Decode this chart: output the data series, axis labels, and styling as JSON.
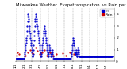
{
  "title": "Milwaukee Weather  Evapotranspiration  vs Rain per Day",
  "legend_et": "ET",
  "legend_rain": "Rain",
  "et_color": "#0000cc",
  "rain_color": "#cc0000",
  "background_color": "#ffffff",
  "grid_color": "#888888",
  "et_data": [
    0.02,
    0.02,
    0.02,
    0.02,
    0.02,
    0.02,
    0.02,
    0.02,
    0.02,
    0.02,
    0.02,
    0.02,
    0.02,
    0.02,
    0.02,
    0.02,
    0.02,
    0.02,
    0.02,
    0.02,
    0.02,
    0.02,
    0.02,
    0.02,
    0.02,
    0.02,
    0.02,
    0.02,
    0.02,
    0.02,
    0.02,
    0.04,
    0.06,
    0.08,
    0.1,
    0.12,
    0.14,
    0.16,
    0.18,
    0.2,
    0.22,
    0.26,
    0.3,
    0.34,
    0.38,
    0.4,
    0.38,
    0.36,
    0.34,
    0.3,
    0.28,
    0.26,
    0.24,
    0.22,
    0.2,
    0.18,
    0.16,
    0.14,
    0.12,
    0.1,
    0.08,
    0.06,
    0.04,
    0.04,
    0.06,
    0.1,
    0.14,
    0.18,
    0.22,
    0.26,
    0.3,
    0.34,
    0.36,
    0.38,
    0.4,
    0.38,
    0.36,
    0.34,
    0.32,
    0.3,
    0.28,
    0.26,
    0.24,
    0.22,
    0.2,
    0.18,
    0.16,
    0.14,
    0.12,
    0.1,
    0.08,
    0.06,
    0.04,
    0.04,
    0.06,
    0.08,
    0.1,
    0.12,
    0.14,
    0.16,
    0.18,
    0.2,
    0.22,
    0.24,
    0.26,
    0.28,
    0.3,
    0.28,
    0.26,
    0.24,
    0.22,
    0.2,
    0.18,
    0.16,
    0.14,
    0.12,
    0.1,
    0.08,
    0.06,
    0.04,
    0.04,
    0.06,
    0.08,
    0.1,
    0.12,
    0.14,
    0.12,
    0.1,
    0.08,
    0.06,
    0.04,
    0.04,
    0.06,
    0.08,
    0.1,
    0.08,
    0.06,
    0.04,
    0.02,
    0.02,
    0.02,
    0.02,
    0.02,
    0.02,
    0.02,
    0.02,
    0.02,
    0.02,
    0.02,
    0.02,
    0.02,
    0.02,
    0.02,
    0.02,
    0.02,
    0.02,
    0.02,
    0.02,
    0.02,
    0.02,
    0.02,
    0.02,
    0.02,
    0.02,
    0.02,
    0.02,
    0.02,
    0.02,
    0.02,
    0.02,
    0.02,
    0.02,
    0.02,
    0.02,
    0.02,
    0.02,
    0.02,
    0.02,
    0.02,
    0.02,
    0.02,
    0.02,
    0.02,
    0.02,
    0.02,
    0.02,
    0.02,
    0.02,
    0.02,
    0.02,
    0.02,
    0.02,
    0.02,
    0.02,
    0.02,
    0.02,
    0.02,
    0.02,
    0.02,
    0.02,
    0.02,
    0.02,
    0.02,
    0.02,
    0.02,
    0.04,
    0.06,
    0.08,
    0.1,
    0.12,
    0.14,
    0.16,
    0.18,
    0.2,
    0.18,
    0.16,
    0.14,
    0.12,
    0.1,
    0.08,
    0.06,
    0.06,
    0.08,
    0.1,
    0.08,
    0.06,
    0.04,
    0.04,
    0.06,
    0.08,
    0.1,
    0.12,
    0.1,
    0.08,
    0.06,
    0.04,
    0.04,
    0.04,
    0.04,
    0.04,
    0.04,
    0.04,
    0.04,
    0.04,
    0.04,
    0.04,
    0.04,
    0.04,
    0.04,
    0.04,
    0.04,
    0.04,
    0.04,
    0.04,
    0.04,
    0.04,
    0.04,
    0.04,
    0.04,
    0.04,
    0.04,
    0.04,
    0.04,
    0.04,
    0.04,
    0.04,
    0.04,
    0.04,
    0.04,
    0.04,
    0.04,
    0.04,
    0.04,
    0.04,
    0.04,
    0.04,
    0.04,
    0.04,
    0.04,
    0.04,
    0.04,
    0.04,
    0.04,
    0.04,
    0.04,
    0.04,
    0.04,
    0.04,
    0.04,
    0.04,
    0.04,
    0.04,
    0.04,
    0.04,
    0.04,
    0.04,
    0.04,
    0.04,
    0.04,
    0.04,
    0.04,
    0.04,
    0.04,
    0.04,
    0.04,
    0.04,
    0.04,
    0.04,
    0.04,
    0.04,
    0.04,
    0.04,
    0.04,
    0.04,
    0.04,
    0.04,
    0.04,
    0.04,
    0.04,
    0.04,
    0.04,
    0.04,
    0.04,
    0.04,
    0.04,
    0.04,
    0.04,
    0.04,
    0.04,
    0.04,
    0.04,
    0.04,
    0.04,
    0.04,
    0.04,
    0.04,
    0.04,
    0.04,
    0.04,
    0.04,
    0.04,
    0.04,
    0.04,
    0.04,
    0.04,
    0.04,
    0.04,
    0.04,
    0.04,
    0.04,
    0.04,
    0.04,
    0.04,
    0.04,
    0.04,
    0.04,
    0.04
  ],
  "rain_data": [
    0.0,
    0.0,
    0.0,
    0.05,
    0.0,
    0.0,
    0.0,
    0.08,
    0.0,
    0.0,
    0.0,
    0.0,
    0.0,
    0.06,
    0.0,
    0.0,
    0.0,
    0.0,
    0.0,
    0.0,
    0.0,
    0.0,
    0.0,
    0.0,
    0.0,
    0.0,
    0.0,
    0.0,
    0.0,
    0.0,
    0.0,
    0.0,
    0.0,
    0.0,
    0.0,
    0.05,
    0.0,
    0.0,
    0.0,
    0.0,
    0.0,
    0.0,
    0.0,
    0.0,
    0.08,
    0.0,
    0.0,
    0.0,
    0.0,
    0.0,
    0.0,
    0.0,
    0.0,
    0.1,
    0.0,
    0.0,
    0.0,
    0.0,
    0.0,
    0.0,
    0.0,
    0.07,
    0.0,
    0.0,
    0.0,
    0.0,
    0.0,
    0.0,
    0.0,
    0.0,
    0.0,
    0.0,
    0.0,
    0.0,
    0.12,
    0.0,
    0.0,
    0.0,
    0.0,
    0.0,
    0.09,
    0.0,
    0.0,
    0.0,
    0.0,
    0.0,
    0.0,
    0.0,
    0.0,
    0.06,
    0.0,
    0.0,
    0.0,
    0.0,
    0.0,
    0.0,
    0.0,
    0.08,
    0.0,
    0.0,
    0.0,
    0.0,
    0.0,
    0.0,
    0.0,
    0.0,
    0.0,
    0.1,
    0.0,
    0.0,
    0.0,
    0.0,
    0.0,
    0.0,
    0.05,
    0.0,
    0.0,
    0.0,
    0.0,
    0.0,
    0.0,
    0.0,
    0.0,
    0.0,
    0.0,
    0.0,
    0.0,
    0.08,
    0.0,
    0.0,
    0.0,
    0.0,
    0.0,
    0.0,
    0.0,
    0.0,
    0.0,
    0.0,
    0.0,
    0.05,
    0.0,
    0.0,
    0.0,
    0.0,
    0.0,
    0.0,
    0.0,
    0.0,
    0.0,
    0.0,
    0.06,
    0.0,
    0.0,
    0.0,
    0.0,
    0.0,
    0.0,
    0.0,
    0.0,
    0.0,
    0.0,
    0.0,
    0.0,
    0.0,
    0.0,
    0.0,
    0.0,
    0.0,
    0.0,
    0.0,
    0.0,
    0.0,
    0.0,
    0.0,
    0.07,
    0.0,
    0.0,
    0.0,
    0.0,
    0.0,
    0.0,
    0.0,
    0.0,
    0.0,
    0.0,
    0.0,
    0.05,
    0.0,
    0.0,
    0.0,
    0.0,
    0.0,
    0.0,
    0.0,
    0.0,
    0.0,
    0.0,
    0.0,
    0.0,
    0.0,
    0.0,
    0.08,
    0.0,
    0.0,
    0.0,
    0.0,
    0.0,
    0.0,
    0.0,
    0.0,
    0.0,
    0.0,
    0.0,
    0.0,
    0.0,
    0.0,
    0.06,
    0.0,
    0.0,
    0.0,
    0.0,
    0.0,
    0.0,
    0.0,
    0.0,
    0.0,
    0.0,
    0.0,
    0.0,
    0.0,
    0.0,
    0.0,
    0.0,
    0.0,
    0.0,
    0.0,
    0.0,
    0.0,
    0.0,
    0.0,
    0.0,
    0.0,
    0.0,
    0.0,
    0.0,
    0.0,
    0.0,
    0.0,
    0.0,
    0.0,
    0.0,
    0.0,
    0.0,
    0.0,
    0.0,
    0.0,
    0.0,
    0.0,
    0.0,
    0.0,
    0.0,
    0.0,
    0.0,
    0.0,
    0.0,
    0.0,
    0.0,
    0.0,
    0.0,
    0.0,
    0.0,
    0.0,
    0.0,
    0.0,
    0.0,
    0.0,
    0.0,
    0.0,
    0.0,
    0.0,
    0.0,
    0.0,
    0.0,
    0.0,
    0.0,
    0.0,
    0.0,
    0.0,
    0.0,
    0.0,
    0.0,
    0.0,
    0.0,
    0.0,
    0.0,
    0.0,
    0.0,
    0.0,
    0.0,
    0.0,
    0.0,
    0.0,
    0.0,
    0.0,
    0.0,
    0.0,
    0.0,
    0.0,
    0.0,
    0.0,
    0.0,
    0.0,
    0.0,
    0.0,
    0.0,
    0.0,
    0.0,
    0.0,
    0.0,
    0.0,
    0.0,
    0.0,
    0.0,
    0.0,
    0.0,
    0.0,
    0.0,
    0.0,
    0.0,
    0.0,
    0.0,
    0.0,
    0.0,
    0.0,
    0.0,
    0.0,
    0.0,
    0.0,
    0.0,
    0.0,
    0.0,
    0.0,
    0.0,
    0.0,
    0.0,
    0.0,
    0.0,
    0.0,
    0.0,
    0.0,
    0.0,
    0.0,
    0.0,
    0.0,
    0.0,
    0.0,
    0.0
  ],
  "month_tick_positions": [
    0,
    31,
    59,
    90,
    120,
    151,
    181,
    212,
    243,
    273,
    304,
    334
  ],
  "month_labels": [
    "1/1",
    "2/1",
    "3/1",
    "4/1",
    "5/1",
    "6/1",
    "7/1",
    "8/1",
    "9/1",
    "10/1",
    "11/1",
    "12/1"
  ],
  "ylim": [
    0.0,
    0.45
  ],
  "xlim": [
    0,
    365
  ],
  "yticks": [
    0.0,
    0.1,
    0.2,
    0.3,
    0.4
  ],
  "ytick_labels": [
    "0",
    ".1",
    ".2",
    ".3",
    ".4"
  ],
  "tick_fontsize": 3.0,
  "title_fontsize": 3.8,
  "legend_fontsize": 3.2,
  "marker_size": 1.2,
  "line_width": 0.4
}
